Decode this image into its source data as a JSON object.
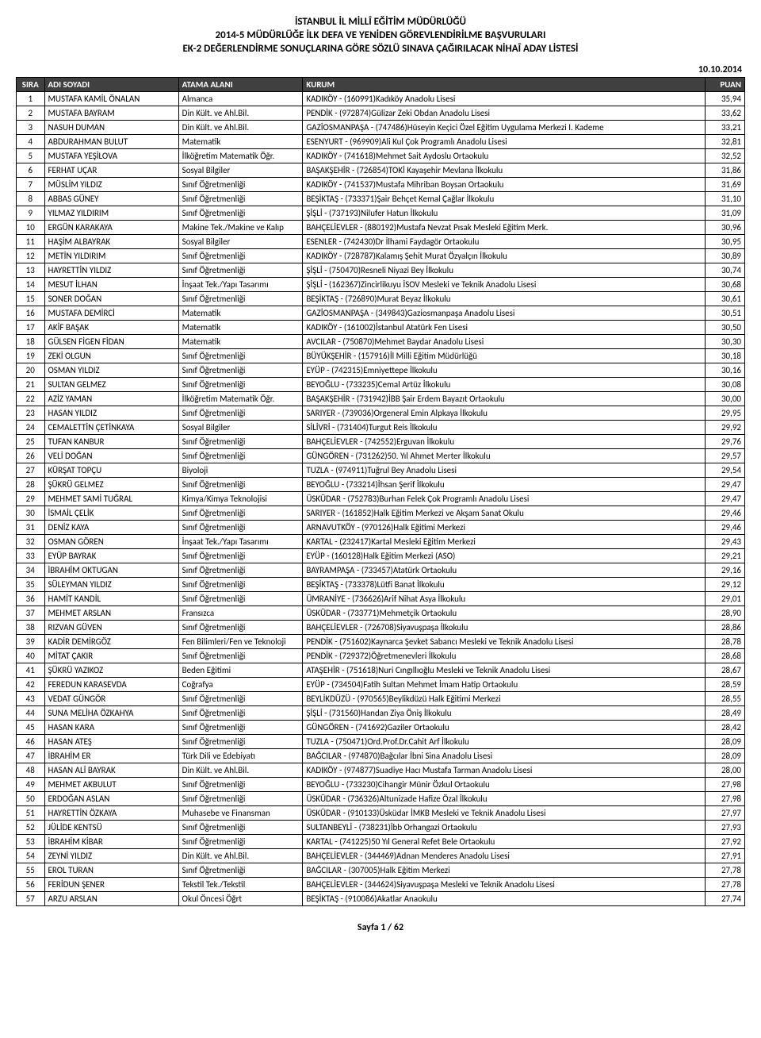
{
  "header": {
    "line1": "İSTANBUL İL MİLLÎ EĞİTİM MÜDÜRLÜĞÜ",
    "line2": "2014-5 MÜDÜRLÜĞE İLK DEFA VE YENİDEN GÖREVLENDİRİLME BAŞVURULARI",
    "line3": "EK-2 DEĞERLENDİRME SONUÇLARINA GÖRE SÖZLÜ SINAVA ÇAĞIRILACAK NİHAÎ ADAY LİSTESİ"
  },
  "date": "10.10.2014",
  "columns": {
    "sira": "SIRA",
    "adi": "ADI SOYADI",
    "atama": "ATAMA ALANI",
    "kurum": "KURUM",
    "puan": "PUAN"
  },
  "footer": "Sayfa 1 / 62",
  "rows": [
    {
      "sira": "1",
      "adi": "MUSTAFA KAMİL ÖNALAN",
      "atama": "Almanca",
      "kurum": "KADIKÖY - (160991)Kadıköy Anadolu Lisesi",
      "puan": "35,94"
    },
    {
      "sira": "2",
      "adi": "MUSTAFA BAYRAM",
      "atama": "Din Kült. ve Ahl.Bil.",
      "kurum": "PENDİK - (972874)Gülizar Zeki Obdan Anadolu Lisesi",
      "puan": "33,62"
    },
    {
      "sira": "3",
      "adi": "NASUH DUMAN",
      "atama": "Din Kült. ve Ahl.Bil.",
      "kurum": "GAZİOSMANPAŞA - (747486)Hüseyin Keçici Özel Eğitim Uygulama Merkezi I. Kademe",
      "puan": "33,21"
    },
    {
      "sira": "4",
      "adi": "ABDURAHMAN BULUT",
      "atama": "Matematik",
      "kurum": "ESENYURT - (969909)Ali Kul Çok Programlı Anadolu Lisesi",
      "puan": "32,81"
    },
    {
      "sira": "5",
      "adi": "MUSTAFA YEŞİLOVA",
      "atama": "İlköğretim Matematik Öğr.",
      "kurum": "KADIKÖY - (741618)Mehmet Sait Aydoslu Ortaokulu",
      "puan": "32,52"
    },
    {
      "sira": "6",
      "adi": "FERHAT UÇAR",
      "atama": "Sosyal Bilgiler",
      "kurum": "BAŞAKŞEHİR - (726854)TOKİ Kayaşehir Mevlana İlkokulu",
      "puan": "31,86"
    },
    {
      "sira": "7",
      "adi": "MÜSLİM YILDIZ",
      "atama": "Sınıf Öğretmenliği",
      "kurum": "KADIKÖY - (741537)Mustafa Mihriban Boysan Ortaokulu",
      "puan": "31,69"
    },
    {
      "sira": "8",
      "adi": "ABBAS GÜNEY",
      "atama": "Sınıf Öğretmenliği",
      "kurum": "BEŞİKTAŞ - (733371)Şair Behçet Kemal Çağlar İlkokulu",
      "puan": "31,10"
    },
    {
      "sira": "9",
      "adi": "YILMAZ YILDIRIM",
      "atama": "Sınıf Öğretmenliği",
      "kurum": "ŞİŞLİ - (737193)Nilufer Hatun İlkokulu",
      "puan": "31,09"
    },
    {
      "sira": "10",
      "adi": "ERGÜN KARAKAYA",
      "atama": "Makine Tek./Makine ve Kalıp",
      "kurum": "BAHÇELİEVLER - (880192)Mustafa Nevzat Pısak Mesleki Eğitim Merk.",
      "puan": "30,96"
    },
    {
      "sira": "11",
      "adi": "HAŞİM ALBAYRAK",
      "atama": "Sosyal Bilgiler",
      "kurum": "ESENLER - (742430)Dr İlhami Faydagör Ortaokulu",
      "puan": "30,95"
    },
    {
      "sira": "12",
      "adi": "METİN YILDIRIM",
      "atama": "Sınıf Öğretmenliği",
      "kurum": "KADIKÖY - (728787)Kalamış Şehit Murat Özyalçın İlkokulu",
      "puan": "30,89"
    },
    {
      "sira": "13",
      "adi": "HAYRETTİN YILDIZ",
      "atama": "Sınıf Öğretmenliği",
      "kurum": "ŞİŞLİ - (750470)Resneli Niyazi Bey İlkokulu",
      "puan": "30,74"
    },
    {
      "sira": "14",
      "adi": "MESUT İLHAN",
      "atama": "İnşaat Tek./Yapı Tasarımı",
      "kurum": "ŞİŞLİ - (162367)Zincirlikuyu İSOV Mesleki ve Teknik Anadolu Lisesi",
      "puan": "30,68"
    },
    {
      "sira": "15",
      "adi": "SONER DOĞAN",
      "atama": "Sınıf Öğretmenliği",
      "kurum": "BEŞİKTAŞ - (726890)Murat Beyaz İlkokulu",
      "puan": "30,61"
    },
    {
      "sira": "16",
      "adi": "MUSTAFA DEMİRCİ",
      "atama": "Matematik",
      "kurum": "GAZİOSMANPAŞA - (349843)Gaziosmanpaşa Anadolu Lisesi",
      "puan": "30,51"
    },
    {
      "sira": "17",
      "adi": "AKİF BAŞAK",
      "atama": "Matematik",
      "kurum": "KADIKÖY - (161002)İstanbul Atatürk Fen Lisesi",
      "puan": "30,50"
    },
    {
      "sira": "18",
      "adi": "GÜLSEN FİGEN FİDAN",
      "atama": "Matematik",
      "kurum": "AVCILAR - (750870)Mehmet Baydar Anadolu Lisesi",
      "puan": "30,30"
    },
    {
      "sira": "19",
      "adi": "ZEKİ OLGUN",
      "atama": "Sınıf Öğretmenliği",
      "kurum": "BÜYÜKŞEHİR - (157916)İl Milli Eğitim Müdürlüğü",
      "puan": "30,18"
    },
    {
      "sira": "20",
      "adi": "OSMAN YILDIZ",
      "atama": "Sınıf Öğretmenliği",
      "kurum": "EYÜP - (742315)Emniyettepe İlkokulu",
      "puan": "30,16"
    },
    {
      "sira": "21",
      "adi": "SULTAN GELMEZ",
      "atama": "Sınıf Öğretmenliği",
      "kurum": "BEYOĞLU - (733235)Cemal Artüz İlkokulu",
      "puan": "30,08"
    },
    {
      "sira": "22",
      "adi": "AZİZ YAMAN",
      "atama": "İlköğretim Matematik Öğr.",
      "kurum": "BAŞAKŞEHİR - (731942)İBB Şair Erdem Bayazıt Ortaokulu",
      "puan": "30,00"
    },
    {
      "sira": "23",
      "adi": "HASAN YILDIZ",
      "atama": "Sınıf Öğretmenliği",
      "kurum": "SARIYER - (739036)Orgeneral Emin Alpkaya İlkokulu",
      "puan": "29,95"
    },
    {
      "sira": "24",
      "adi": "CEMALETTİN ÇETİNKAYA",
      "atama": "Sosyal Bilgiler",
      "kurum": "SİLİVRİ - (731404)Turgut Reis İlkokulu",
      "puan": "29,92"
    },
    {
      "sira": "25",
      "adi": "TUFAN KANBUR",
      "atama": "Sınıf Öğretmenliği",
      "kurum": "BAHÇELİEVLER - (742552)Erguvan İlkokulu",
      "puan": "29,76"
    },
    {
      "sira": "26",
      "adi": "VELİ DOĞAN",
      "atama": "Sınıf Öğretmenliği",
      "kurum": "GÜNGÖREN - (731262)50. Yıl Ahmet Merter İlkokulu",
      "puan": "29,57"
    },
    {
      "sira": "27",
      "adi": "KÜRŞAT TOPÇU",
      "atama": "Biyoloji",
      "kurum": "TUZLA - (974911)Tuğrul Bey Anadolu Lisesi",
      "puan": "29,54"
    },
    {
      "sira": "28",
      "adi": "ŞÜKRÜ GELMEZ",
      "atama": "Sınıf Öğretmenliği",
      "kurum": "BEYOĞLU - (733214)İhsan Şerif İlkokulu",
      "puan": "29,47"
    },
    {
      "sira": "29",
      "adi": "MEHMET SAMİ TUĞRAL",
      "atama": "Kimya/Kimya Teknolojisi",
      "kurum": "ÜSKÜDAR - (752783)Burhan Felek Çok Programlı Anadolu Lisesi",
      "puan": "29,47"
    },
    {
      "sira": "30",
      "adi": "İSMAİL ÇELİK",
      "atama": "Sınıf Öğretmenliği",
      "kurum": "SARIYER - (161852)Halk Eğitim Merkezi ve Akşam Sanat Okulu",
      "puan": "29,46"
    },
    {
      "sira": "31",
      "adi": "DENİZ KAYA",
      "atama": "Sınıf Öğretmenliği",
      "kurum": "ARNAVUTKÖY - (970126)Halk Eğitimi Merkezi",
      "puan": "29,46"
    },
    {
      "sira": "32",
      "adi": "OSMAN GÖREN",
      "atama": "İnşaat Tek./Yapı Tasarımı",
      "kurum": "KARTAL - (232417)Kartal Mesleki Eğitim Merkezi",
      "puan": "29,43"
    },
    {
      "sira": "33",
      "adi": "EYÜP BAYRAK",
      "atama": "Sınıf Öğretmenliği",
      "kurum": "EYÜP - (160128)Halk Eğitim Merkezi (ASO)",
      "puan": "29,21"
    },
    {
      "sira": "34",
      "adi": "İBRAHİM OKTUGAN",
      "atama": "Sınıf Öğretmenliği",
      "kurum": "BAYRAMPAŞA - (733457)Atatürk Ortaokulu",
      "puan": "29,16"
    },
    {
      "sira": "35",
      "adi": "SÜLEYMAN YILDIZ",
      "atama": "Sınıf Öğretmenliği",
      "kurum": "BEŞİKTAŞ - (733378)Lütfi Banat İlkokulu",
      "puan": "29,12"
    },
    {
      "sira": "36",
      "adi": "HAMİT KANDİL",
      "atama": "Sınıf Öğretmenliği",
      "kurum": "ÜMRANİYE - (736626)Arif Nihat Asya İlkokulu",
      "puan": "29,01"
    },
    {
      "sira": "37",
      "adi": "MEHMET ARSLAN",
      "atama": "Fransızca",
      "kurum": "ÜSKÜDAR - (733771)Mehmetçik Ortaokulu",
      "puan": "28,90"
    },
    {
      "sira": "38",
      "adi": "RIZVAN GÜVEN",
      "atama": "Sınıf Öğretmenliği",
      "kurum": "BAHÇELİEVLER - (726708)Siyavuşpaşa İlkokulu",
      "puan": "28,86"
    },
    {
      "sira": "39",
      "adi": "KADİR DEMİRGÖZ",
      "atama": "Fen Bilimleri/Fen ve Teknoloji",
      "kurum": "PENDİK - (751602)Kaynarca Şevket Sabancı Mesleki ve Teknik Anadolu Lisesi",
      "puan": "28,78"
    },
    {
      "sira": "40",
      "adi": "MİTAT ÇAKIR",
      "atama": "Sınıf Öğretmenliği",
      "kurum": "PENDİK - (729372)Öğretmenevleri İlkokulu",
      "puan": "28,68"
    },
    {
      "sira": "41",
      "adi": "ŞÜKRÜ YAZIKOZ",
      "atama": "Beden Eğitimi",
      "kurum": "ATAŞEHİR - (751618)Nuri Cıngıllıoğlu Mesleki ve Teknik Anadolu Lisesi",
      "puan": "28,67"
    },
    {
      "sira": "42",
      "adi": "FEREDUN KARASEVDA",
      "atama": "Coğrafya",
      "kurum": "EYÜP - (734504)Fatih Sultan Mehmet İmam Hatip Ortaokulu",
      "puan": "28,59"
    },
    {
      "sira": "43",
      "adi": "VEDAT GÜNGÖR",
      "atama": "Sınıf Öğretmenliği",
      "kurum": "BEYLİKDÜZÜ - (970565)Beylikdüzü Halk Eğitimi Merkezi",
      "puan": "28,55"
    },
    {
      "sira": "44",
      "adi": "SUNA MELİHA ÖZKAHYA",
      "atama": "Sınıf Öğretmenliği",
      "kurum": "ŞİŞLİ - (731560)Handan Ziya Öniş İlkokulu",
      "puan": "28,49"
    },
    {
      "sira": "45",
      "adi": "HASAN KARA",
      "atama": "Sınıf Öğretmenliği",
      "kurum": "GÜNGÖREN - (741692)Gaziler Ortaokulu",
      "puan": "28,42"
    },
    {
      "sira": "46",
      "adi": "HASAN ATEŞ",
      "atama": "Sınıf Öğretmenliği",
      "kurum": "TUZLA - (750471)Ord.Prof.Dr.Cahit Arf İlkokulu",
      "puan": "28,09"
    },
    {
      "sira": "47",
      "adi": "İBRAHİM ER",
      "atama": "Türk Dili ve Edebiyatı",
      "kurum": "BAĞCILAR - (974870)Bağcılar İbni Sina Anadolu Lisesi",
      "puan": "28,09"
    },
    {
      "sira": "48",
      "adi": "HASAN ALİ BAYRAK",
      "atama": "Din Kült. ve Ahl.Bil.",
      "kurum": "KADIKÖY - (974877)Suadiye Hacı Mustafa Tarman Anadolu Lisesi",
      "puan": "28,00"
    },
    {
      "sira": "49",
      "adi": "MEHMET AKBULUT",
      "atama": "Sınıf Öğretmenliği",
      "kurum": "BEYOĞLU - (733230)Cihangir Münir Özkul Ortaokulu",
      "puan": "27,98"
    },
    {
      "sira": "50",
      "adi": "ERDOĞAN ASLAN",
      "atama": "Sınıf Öğretmenliği",
      "kurum": "ÜSKÜDAR - (736326)Altunizade Hafize Özal İlkokulu",
      "puan": "27,98"
    },
    {
      "sira": "51",
      "adi": "HAYRETTİN ÖZKAYA",
      "atama": "Muhasebe ve Finansman",
      "kurum": "ÜSKÜDAR - (910133)Üsküdar İMKB Mesleki ve Teknik Anadolu Lisesi",
      "puan": "27,97"
    },
    {
      "sira": "52",
      "adi": "JÜLİDE KENTSÜ",
      "atama": "Sınıf Öğretmenliği",
      "kurum": "SULTANBEYLİ - (738231)İbb Orhangazi Ortaokulu",
      "puan": "27,93"
    },
    {
      "sira": "53",
      "adi": "İBRAHİM KİBAR",
      "atama": "Sınıf Öğretmenliği",
      "kurum": "KARTAL - (741225)50 Yıl General Refet Bele Ortaokulu",
      "puan": "27,92"
    },
    {
      "sira": "54",
      "adi": "ZEYNİ YILDIZ",
      "atama": "Din Kült. ve Ahl.Bil.",
      "kurum": "BAHÇELİEVLER - (344469)Adnan Menderes Anadolu Lisesi",
      "puan": "27,91"
    },
    {
      "sira": "55",
      "adi": "EROL TURAN",
      "atama": "Sınıf Öğretmenliği",
      "kurum": "BAĞCILAR - (307005)Halk Eğitim Merkezi",
      "puan": "27,78"
    },
    {
      "sira": "56",
      "adi": "FERİDUN ŞENER",
      "atama": "Tekstil Tek./Tekstil",
      "kurum": "BAHÇELİEVLER - (344624)Siyavuşpaşa Mesleki ve Teknik Anadolu Lisesi",
      "puan": "27,78"
    },
    {
      "sira": "57",
      "adi": "ARZU ARSLAN",
      "atama": "Okul Öncesi Öğrt",
      "kurum": "BEŞİKTAŞ - (910086)Akatlar Anaokulu",
      "puan": "27,74"
    }
  ]
}
